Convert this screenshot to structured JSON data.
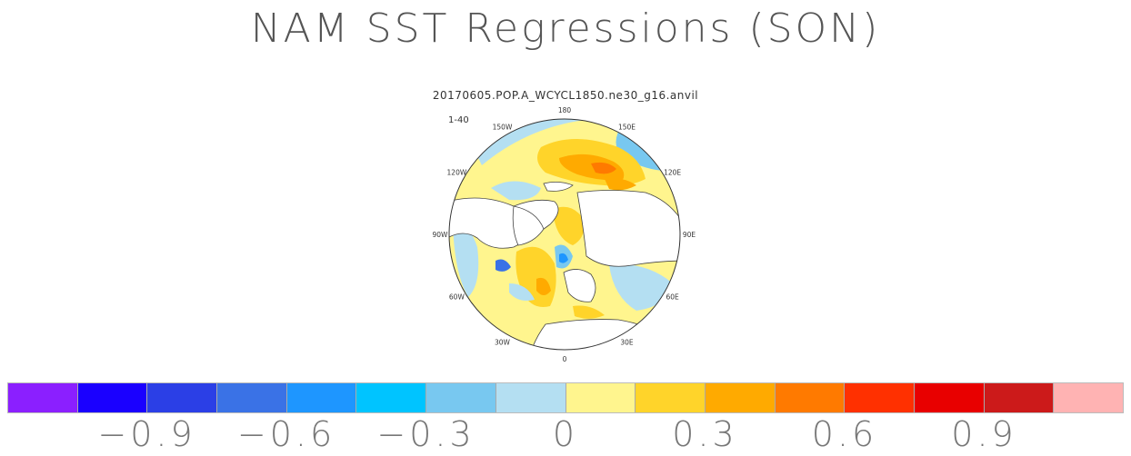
{
  "chart_data": {
    "type": "heatmap",
    "title": "NAM SST Regressions (SON)",
    "subtitle": "20170605.POP.A_WCYCL1850.ne30_g16.anvil",
    "corner_label": "1-40",
    "projection": "north-polar-stereographic",
    "longitude_labels": [
      "180",
      "150E",
      "120E",
      "90E",
      "60E",
      "30E",
      "0",
      "30W",
      "60W",
      "90W",
      "120W",
      "150W"
    ],
    "colorbar": {
      "colors": [
        "#8b1fff",
        "#1a00ff",
        "#2b3fe6",
        "#3a72e6",
        "#1e96ff",
        "#00c4ff",
        "#78c8f0",
        "#b4dff2",
        "#fff58e",
        "#ffd42a",
        "#ffaa00",
        "#ff7a00",
        "#ff3000",
        "#e80000",
        "#cc1a1a",
        "#ffb3b3"
      ],
      "tick_labels": [
        "−0.9",
        "−0.6",
        "−0.3",
        "0",
        "0.3",
        "0.6",
        "0.9"
      ],
      "tick_values": [
        -0.9,
        -0.6,
        -0.3,
        0,
        0.3,
        0.6,
        0.9
      ],
      "tick_after_box": [
        2,
        4,
        6,
        8,
        10,
        12,
        14
      ]
    }
  }
}
